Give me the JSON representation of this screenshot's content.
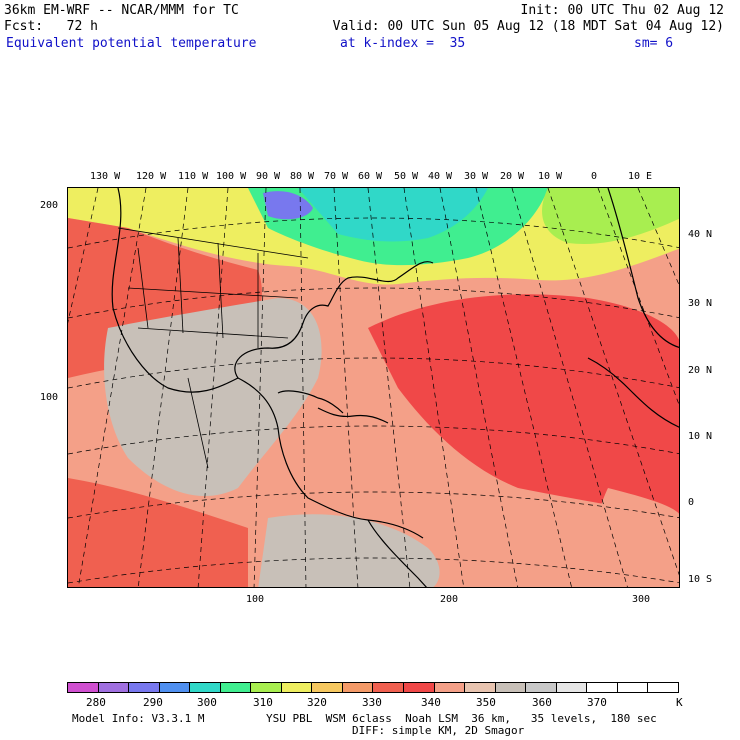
{
  "header": {
    "model_line": "36km EM-WRF -- NCAR/MMM for TC",
    "init_line": "Init: 00 UTC Thu 02 Aug 12",
    "fcst_line": "Fcst:   72 h",
    "valid_line": "Valid: 00 UTC Sun 05 Aug 12 (18 MDT Sat 04 Aug 12)",
    "field_name": "Equivalent potential temperature",
    "level_line": "at k-index =  35",
    "smooth_line": "sm= 6"
  },
  "longitude_labels": [
    "130 W",
    "120 W",
    "110 W",
    "100 W",
    "90 W",
    "80 W",
    "70 W",
    "60 W",
    "50 W",
    "40 W",
    "30 W",
    "20 W",
    "10 W",
    "0",
    "10 E"
  ],
  "latitude_labels": [
    "40 N",
    "30 N",
    "20 N",
    "10 N",
    "0",
    "10 S"
  ],
  "grid_x_labels": [
    "100",
    "200",
    "300"
  ],
  "grid_y_labels": [
    "200",
    "100"
  ],
  "legend": {
    "values": [
      "280",
      "290",
      "300",
      "310",
      "320",
      "330",
      "340",
      "350",
      "360",
      "370"
    ],
    "unit": "K",
    "colors": [
      "#d050d0",
      "#a070e0",
      "#7878ee",
      "#5090f0",
      "#30d8c8",
      "#40ee90",
      "#a8ee50",
      "#eeee60",
      "#f6c860",
      "#f49a68",
      "#f06050",
      "#f04848",
      "#f4a088",
      "#e8c4b0",
      "#c8c0b8",
      "#c8c8c8",
      "#e6e6e6",
      "#ffffff",
      "#ffffff",
      "#ffffff"
    ]
  },
  "footer": {
    "model_info": "Model Info: V3.3.1 M",
    "physics": "YSU PBL  WSM 6class  Noah LSM  36 km,   35 levels,  180 sec",
    "diffusion": "DIFF: simple KM, 2D Smagor"
  }
}
